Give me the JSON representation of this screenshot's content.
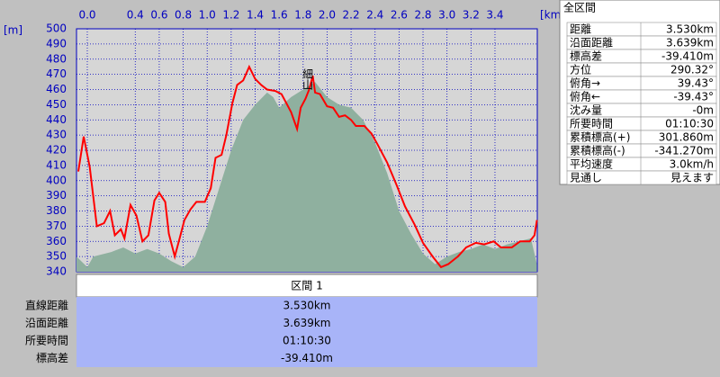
{
  "chart_data": {
    "type": "line",
    "x_label": "[km]",
    "y_label": "[m]",
    "xlim": [
      -0.09,
      3.753
    ],
    "ylim": [
      340,
      500
    ],
    "xticks": [
      {
        "value": 0,
        "label": "0.0"
      },
      0.4,
      0.6,
      0.8,
      {
        "value": 1,
        "label": "1.0"
      },
      1.2,
      1.4,
      1.6,
      1.8,
      {
        "value": 2,
        "label": "2.0"
      },
      2.2,
      2.4,
      2.6,
      2.8,
      {
        "value": 3,
        "label": "3.0"
      },
      3.2,
      3.4
    ],
    "yticks": [
      340,
      350,
      360,
      370,
      380,
      390,
      400,
      410,
      420,
      430,
      440,
      450,
      460,
      470,
      480,
      490,
      500
    ],
    "grid": true,
    "annotation": "細山",
    "series": [
      {
        "kind": "area",
        "color": "#8fb09f",
        "x": [
          -0.09,
          0.0,
          0.05,
          0.2,
          0.3,
          0.4,
          0.5,
          0.6,
          0.7,
          0.8,
          0.9,
          1.0,
          1.1,
          1.2,
          1.3,
          1.4,
          1.5,
          1.55,
          1.6,
          1.7,
          1.8,
          1.9,
          2.0,
          2.1,
          2.2,
          2.3,
          2.4,
          2.5,
          2.6,
          2.7,
          2.8,
          2.9,
          3.0,
          3.1,
          3.2,
          3.3,
          3.4,
          3.5,
          3.6,
          3.7,
          3.75
        ],
        "values": [
          350,
          343,
          350,
          353,
          356,
          352,
          355,
          352,
          347,
          343,
          350,
          370,
          395,
          420,
          440,
          450,
          458,
          455,
          448,
          455,
          460,
          465,
          455,
          450,
          448,
          440,
          425,
          405,
          380,
          365,
          352,
          345,
          350,
          353,
          355,
          358,
          355,
          358,
          360,
          362,
          345
        ]
      },
      {
        "kind": "line",
        "color": "#ff0000",
        "x": [
          -0.075,
          -0.03,
          0.02,
          0.08,
          0.14,
          0.19,
          0.23,
          0.28,
          0.31,
          0.36,
          0.41,
          0.46,
          0.51,
          0.56,
          0.6,
          0.65,
          0.68,
          0.73,
          0.77,
          0.81,
          0.86,
          0.91,
          0.98,
          1.03,
          1.07,
          1.12,
          1.16,
          1.21,
          1.25,
          1.3,
          1.35,
          1.4,
          1.45,
          1.5,
          1.57,
          1.62,
          1.66,
          1.7,
          1.75,
          1.78,
          1.82,
          1.85,
          1.88,
          1.9,
          1.94,
          2.0,
          2.05,
          2.1,
          2.15,
          2.2,
          2.24,
          2.31,
          2.37,
          2.42,
          2.5,
          2.58,
          2.65,
          2.73,
          2.8,
          2.88,
          2.95,
          3.01,
          3.09,
          3.16,
          3.24,
          3.31,
          3.39,
          3.45,
          3.54,
          3.61,
          3.69,
          3.73,
          3.75
        ],
        "values": [
          406,
          429,
          409,
          370,
          372,
          380,
          364,
          368,
          362,
          384,
          377,
          360,
          364,
          387,
          392,
          386,
          365,
          350,
          362,
          374,
          381,
          386,
          386,
          395,
          415,
          417,
          430,
          451,
          463,
          466,
          475,
          467,
          463,
          460,
          459,
          457,
          451,
          445,
          434,
          448,
          454,
          460,
          469,
          458,
          457,
          449,
          448,
          442,
          443,
          440,
          436,
          436,
          431,
          424,
          412,
          397,
          383,
          371,
          359,
          350,
          343,
          345,
          350,
          356,
          359,
          358,
          360,
          356,
          356,
          360,
          360,
          364,
          374
        ]
      }
    ]
  },
  "summary": {
    "title": "全区間",
    "rows": [
      [
        "距離",
        "3.530km"
      ],
      [
        "沿面距離",
        "3.639km"
      ],
      [
        "標高差",
        "-39.410m"
      ],
      [
        "方位",
        "290.32°"
      ],
      [
        "俯角→",
        "39.43°"
      ],
      [
        "俯角←",
        "-39.43°"
      ],
      [
        "沈み量",
        "-0m"
      ],
      [
        "所要時間",
        "01:10:30"
      ],
      [
        "累積標高(+)",
        "301.860m"
      ],
      [
        "累積標高(-)",
        "-341.270m"
      ],
      [
        "平均速度",
        "3.0km/h"
      ],
      [
        "見通し",
        "見えます"
      ]
    ]
  },
  "section": {
    "title": "区間 1",
    "rows": [
      [
        "直線距離",
        "3.530km"
      ],
      [
        "沿面距離",
        "3.639km"
      ],
      [
        "所要時間",
        "01:10:30"
      ],
      [
        "標高差",
        "-39.410m"
      ]
    ]
  }
}
